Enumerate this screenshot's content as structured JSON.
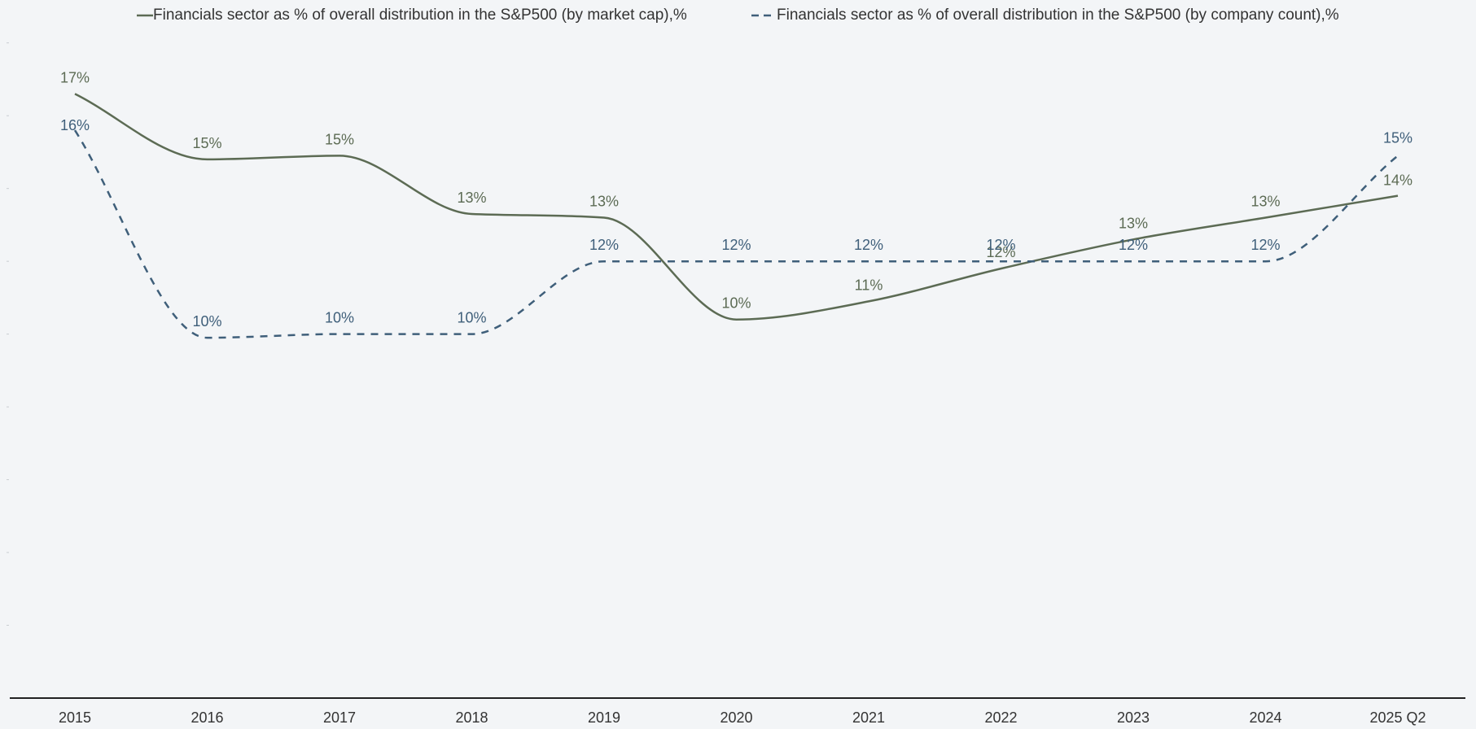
{
  "chart_data": {
    "type": "line",
    "title": "",
    "xlabel": "",
    "ylabel": "",
    "categories": [
      "2015",
      "2016",
      "2017",
      "2018",
      "2019",
      "2020",
      "2021",
      "2022",
      "2023",
      "2024",
      "2025 Q2"
    ],
    "ylim": [
      0,
      19
    ],
    "grid": false,
    "legend_position": "top",
    "series": [
      {
        "name": "Financials sector as % of overall distribution in the S&P500 (by market cap),%",
        "style": "solid",
        "color": "#5c6b54",
        "values": [
          16.6,
          14.8,
          14.9,
          13.3,
          13.2,
          10.4,
          10.9,
          11.8,
          12.6,
          13.2,
          13.8
        ],
        "labels": [
          "17%",
          "15%",
          "15%",
          "13%",
          "13%",
          "10%",
          "11%",
          "12%",
          "13%",
          "13%",
          "14%"
        ]
      },
      {
        "name": "Financials sector as % of overall distribution in the S&P500 (by company count),%",
        "style": "dashed",
        "color": "#3f5f7a",
        "values": [
          15.6,
          9.9,
          10.0,
          10.0,
          12.0,
          12.0,
          12.0,
          12.0,
          12.0,
          12.0,
          14.9
        ],
        "labels": [
          "16%",
          "10%",
          "10%",
          "10%",
          "12%",
          "12%",
          "12%",
          "12%",
          "12%",
          "12%",
          "15%"
        ]
      }
    ]
  }
}
